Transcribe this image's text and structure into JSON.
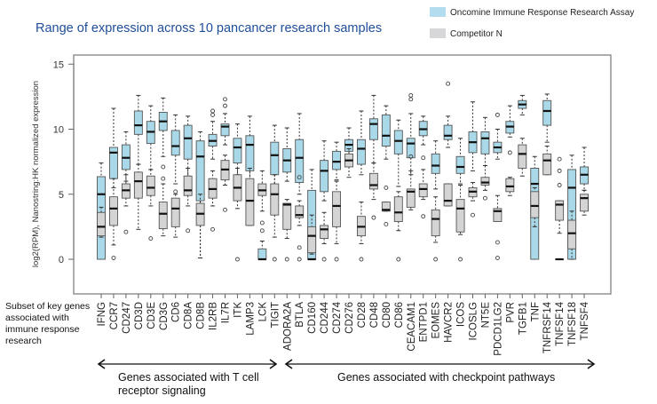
{
  "chart_data": {
    "type": "boxplot",
    "title": "Range of expression across 10 pancancer research samples",
    "ylabel": "log2(RPM), Nanostring:HK normalized expression",
    "ylim": [
      -2.7,
      15.8
    ],
    "yticks": [
      0,
      5,
      10,
      15
    ],
    "grid": false,
    "legend_placement": "top-right",
    "xlabel_note": [
      "Subset of key genes",
      "associated with",
      "immune response",
      "research"
    ],
    "groups": [
      {
        "label_lines": [
          "Genes associated with T cell",
          "receptor signaling"
        ],
        "from": "IFNG",
        "to": "TIGIT"
      },
      {
        "label_lines": [
          "Genes associated with checkpoint pathways"
        ],
        "from": "ADORA2A",
        "to": "TNFSF4"
      }
    ],
    "categories": [
      "IFNG",
      "CCR7",
      "CD247",
      "CD3D",
      "CD3E",
      "CD3G",
      "CD6",
      "CD8A",
      "CD8B",
      "IL2RB",
      "IL7R",
      "ITK",
      "LAMP3",
      "LCK",
      "TIGIT",
      "ADORA2A",
      "BTLA",
      "CD160",
      "CD244",
      "CD274",
      "CD276",
      "CD28",
      "CD48",
      "CD80",
      "CD86",
      "CEACAM1",
      "ENTPD1",
      "EOMES",
      "HAVCR2",
      "ICOS",
      "ICOSLG",
      "NT5E",
      "PDCD1LG2",
      "PVR",
      "TGFB1",
      "TNF",
      "TNFRSF14",
      "TNFSF14",
      "TNFSF18",
      "TNFSF4"
    ],
    "stat_order": [
      "whisker_low",
      "q1",
      "median",
      "q3",
      "whisker_high"
    ],
    "series": [
      {
        "name": "Oncomine Immune Response Research Assay",
        "color": "#a9d9e8",
        "boxes": [
          [
            0,
            0,
            5.0,
            6.35,
            7.4
          ],
          [
            5.5,
            6.2,
            8.2,
            8.6,
            11.6
          ],
          [
            6.0,
            6.9,
            7.8,
            8.8,
            9.8
          ],
          [
            7.3,
            9.6,
            10.3,
            11.4,
            12.6
          ],
          [
            6.9,
            8.9,
            9.8,
            10.6,
            11.8
          ],
          [
            7.9,
            9.9,
            10.6,
            11.3,
            12.4
          ],
          [
            5.8,
            8.0,
            8.7,
            9.9,
            11.1
          ],
          [
            6.4,
            7.7,
            9.3,
            10.3,
            11.0
          ],
          [
            0.1,
            4.5,
            7.9,
            9.1,
            9.8
          ],
          [
            7.7,
            8.7,
            9.1,
            9.6,
            10.6
          ],
          [
            8.8,
            9.5,
            10.2,
            10.4,
            11.2
          ],
          [
            6.5,
            7.4,
            8.6,
            9.3,
            10.4
          ],
          [
            6.0,
            6.8,
            8.8,
            9.5,
            11.0
          ],
          [
            0,
            0,
            0,
            0.8,
            1.4
          ],
          [
            5.0,
            6.5,
            8.0,
            9.0,
            10.3
          ],
          [
            6.0,
            6.7,
            7.6,
            8.5,
            10.1
          ],
          [
            5.0,
            5.9,
            7.8,
            9.2,
            11.2
          ],
          [
            0,
            0,
            0,
            5.3,
            6.9
          ],
          [
            4.5,
            5.2,
            6.8,
            7.6,
            9.1
          ],
          [
            6.1,
            6.9,
            7.5,
            8.3,
            9.0
          ],
          [
            7.5,
            8.3,
            8.8,
            9.2,
            10.1
          ],
          [
            6.5,
            7.3,
            8.5,
            9.2,
            11.4
          ],
          [
            7.4,
            9.2,
            10.4,
            10.8,
            12.6
          ],
          [
            7.7,
            8.7,
            9.5,
            11.1,
            11.8
          ],
          [
            5.6,
            8.1,
            9.1,
            9.9,
            10.7
          ],
          [
            6.5,
            7.8,
            8.9,
            9.3,
            11.2
          ],
          [
            8.8,
            9.5,
            10.0,
            10.6,
            11.0
          ],
          [
            5.4,
            6.6,
            7.2,
            8.1,
            9.1
          ],
          [
            8.6,
            9.2,
            9.5,
            10.3,
            11.0
          ],
          [
            5.8,
            6.6,
            7.1,
            7.9,
            9.3
          ],
          [
            6.8,
            8.2,
            9.0,
            9.8,
            12.1
          ],
          [
            7.2,
            8.1,
            9.3,
            9.8,
            10.9
          ],
          [
            7.7,
            8.2,
            8.6,
            9.0,
            10.0
          ],
          [
            9.4,
            9.7,
            10.2,
            10.6,
            11.8
          ],
          [
            11.1,
            11.6,
            11.9,
            12.2,
            12.6
          ],
          [
            0,
            0,
            5.8,
            7.0,
            7.9
          ],
          [
            9.0,
            10.3,
            11.4,
            12.2,
            12.7
          ],
          [
            0,
            0,
            0,
            0,
            0
          ],
          [
            0,
            0,
            5.5,
            6.9,
            8.0
          ],
          [
            5.3,
            5.8,
            6.5,
            7.1,
            8.6
          ]
        ],
        "outliers": [
          [],
          [],
          [],
          [],
          [],
          [],
          [],
          [],
          [],
          [
            11.1,
            11.4
          ],
          [
            11.8,
            12.3
          ],
          [],
          [],
          [],
          [],
          [],
          [
            6.3
          ],
          [],
          [],
          [],
          [],
          [],
          [],
          [],
          [],
          [
            12.3,
            12.6
          ],
          [
            7.8
          ],
          [],
          [
            13.5
          ],
          [],
          [],
          [],
          [
            11.1
          ],
          [
            8.2
          ],
          [],
          [],
          [],
          [],
          [],
          []
        ]
      },
      {
        "name": "Competitor N",
        "color": "#d4d4d4",
        "boxes": [
          [
            1.7,
            1.8,
            2.5,
            3.6,
            4.0
          ],
          [
            1.1,
            2.6,
            3.9,
            4.8,
            6.2
          ],
          [
            4.1,
            4.7,
            5.3,
            5.8,
            6.5
          ],
          [
            2.3,
            4.7,
            6.0,
            6.7,
            7.3
          ],
          [
            4.1,
            4.9,
            5.5,
            6.4,
            6.9
          ],
          [
            1.8,
            2.35,
            3.5,
            4.4,
            5.8
          ],
          [
            1.7,
            2.5,
            3.9,
            4.7,
            5.0
          ],
          [
            4.1,
            4.9,
            5.3,
            6.4,
            7.0
          ],
          [
            0.1,
            2.6,
            3.5,
            4.3,
            5.0
          ],
          [
            4.1,
            4.7,
            5.4,
            6.2,
            6.8
          ],
          [
            5.7,
            6.1,
            6.9,
            7.6,
            8.0
          ],
          [
            3.9,
            4.5,
            5.5,
            6.5,
            7.0
          ],
          [
            2.6,
            2.6,
            4.5,
            6.2,
            7.0
          ],
          [
            3.7,
            4.9,
            5.3,
            5.8,
            6.8
          ],
          [
            1.7,
            3.4,
            5.0,
            5.8,
            6.5
          ],
          [
            1.6,
            2.3,
            4.2,
            4.3,
            4.6
          ],
          [
            2.6,
            3.2,
            3.4,
            4.1,
            4.5
          ],
          [
            0.4,
            0.5,
            1.8,
            2.5,
            3.4
          ],
          [
            1.2,
            1.6,
            2.3,
            2.6,
            3.6
          ],
          [
            1.2,
            2.5,
            4.1,
            5.2,
            6.0
          ],
          [
            6.3,
            7.1,
            7.6,
            8.1,
            8.5
          ],
          [
            1.2,
            1.8,
            2.5,
            3.3,
            4.4
          ],
          [
            4.6,
            5.4,
            5.7,
            6.6,
            7.4
          ],
          [
            3.7,
            3.7,
            3.8,
            4.4,
            4.4
          ],
          [
            2.2,
            2.9,
            3.6,
            4.8,
            5.2
          ],
          [
            3.8,
            4.0,
            5.2,
            5.4,
            6.8
          ],
          [
            4.6,
            4.8,
            5.4,
            5.8,
            6.9
          ],
          [
            1.3,
            1.8,
            3.1,
            3.8,
            4.8
          ],
          [
            4.1,
            4.1,
            4.5,
            5.8,
            5.8
          ],
          [
            1.9,
            2.1,
            3.9,
            4.6,
            5.7
          ],
          [
            4.5,
            4.8,
            5.2,
            5.5,
            5.9
          ],
          [
            5.3,
            5.7,
            5.9,
            6.3,
            7.2
          ],
          [
            2.9,
            2.9,
            3.7,
            3.9,
            4.9
          ],
          [
            4.9,
            5.2,
            5.6,
            6.2,
            6.3
          ],
          [
            6.4,
            7.0,
            8.1,
            8.8,
            9.3
          ],
          [
            2.5,
            3.2,
            4.1,
            5.2,
            5.5
          ],
          [
            6.5,
            6.5,
            7.6,
            8.1,
            8.7
          ],
          [
            2.0,
            3.0,
            4.2,
            4.5,
            4.5
          ],
          [
            0,
            0.8,
            2.0,
            3.0,
            3.7
          ],
          [
            3.4,
            3.7,
            4.7,
            5.0,
            5.3
          ]
        ],
        "outliers": [
          [],
          [
            0.1
          ],
          [
            2.1
          ],
          [],
          [
            1.6
          ],
          [
            6.2,
            7.1
          ],
          [
            5.2
          ],
          [
            2.2
          ],
          [],
          [
            2.3
          ],
          [
            3.8
          ],
          [
            0
          ],
          [],
          [
            2.8,
            2.2
          ],
          [
            0
          ],
          [
            0
          ],
          [
            0.9,
            0
          ],
          [],
          [
            0
          ],
          [
            0
          ],
          [],
          [
            0
          ],
          [
            3.2
          ],
          [
            5.5,
            2.7
          ],
          [
            0
          ],
          [
            7.9
          ],
          [
            3.3
          ],
          [
            0
          ],
          [],
          [
            0
          ],
          [
            3.4
          ],
          [
            4.7
          ],
          [
            1.3,
            0.1
          ],
          [],
          [],
          [],
          [],
          [
            5.7,
            6.8,
            7.7
          ],
          [],
          []
        ]
      }
    ]
  }
}
